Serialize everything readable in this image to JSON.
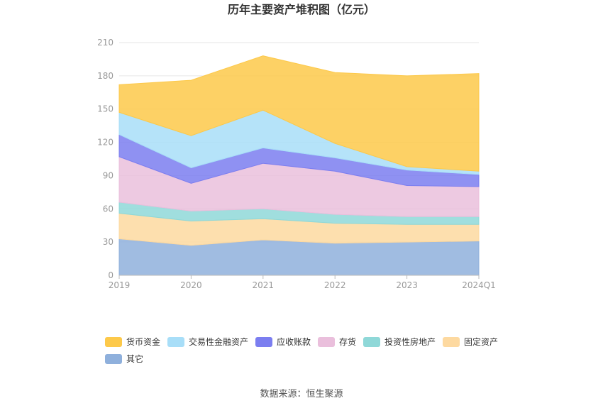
{
  "chart_data": {
    "type": "area",
    "stacked": true,
    "title": "历年主要资产堆积图（亿元）",
    "x": [
      "2019",
      "2020",
      "2021",
      "2022",
      "2023",
      "2024Q1"
    ],
    "ylim": [
      0,
      210
    ],
    "yticks": [
      0,
      30,
      60,
      90,
      120,
      150,
      180,
      210
    ],
    "grid": true,
    "legend_position": "bottom",
    "series": [
      {
        "name": "其它",
        "color": "#8fb0dc",
        "values": [
          33,
          27,
          32,
          29,
          30,
          31
        ]
      },
      {
        "name": "固定资产",
        "color": "#fdd9a0",
        "values": [
          23,
          22,
          19,
          18,
          16,
          15
        ]
      },
      {
        "name": "投资性房地产",
        "color": "#8fd8d8",
        "values": [
          10,
          9,
          9,
          8,
          7,
          7
        ]
      },
      {
        "name": "存货",
        "color": "#eabfdc",
        "values": [
          41,
          25,
          41,
          39,
          28,
          27
        ]
      },
      {
        "name": "应收账款",
        "color": "#7b7ef0",
        "values": [
          20,
          14,
          14,
          12,
          14,
          11
        ]
      },
      {
        "name": "交易性金融资产",
        "color": "#a8def8",
        "values": [
          20,
          29,
          34,
          13,
          3,
          3
        ]
      },
      {
        "name": "货币资金",
        "color": "#fdc94a",
        "values": [
          25,
          50,
          49,
          64,
          82,
          88
        ]
      }
    ],
    "legend_order": [
      "货币资金",
      "交易性金融资产",
      "应收账款",
      "存货",
      "投资性房地产",
      "固定资产",
      "其它"
    ]
  },
  "footer": {
    "source": "数据来源：恒生聚源"
  }
}
